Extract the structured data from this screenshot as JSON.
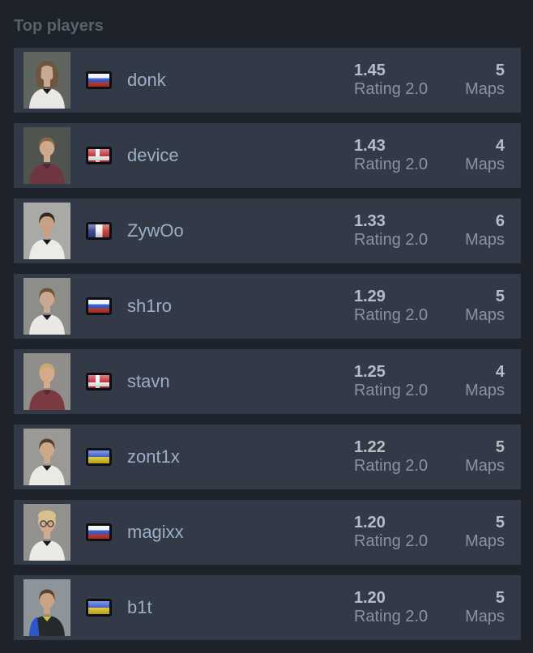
{
  "title": "Top players",
  "labels": {
    "rating": "Rating 2.0",
    "maps": "Maps"
  },
  "colors": {
    "page_bg": "#1d222b",
    "row_bg": "#313a46",
    "title": "#59616b",
    "player_name": "#9cafc7",
    "stat_value": "#b5bec7",
    "stat_label": "#8a939e",
    "flag_border": "#0e0f12"
  },
  "flag_palette": {
    "ru": [
      "#eef0f2",
      "#2b50c8",
      "#c5362a"
    ],
    "dk": [
      "#c32b35",
      "#f4f4f4"
    ],
    "fr": [
      "#31418e",
      "#f0f0f0",
      "#bc3c3c"
    ],
    "ua": [
      "#2f55cc",
      "#e3c82e"
    ]
  },
  "players": [
    {
      "name": "donk",
      "country": "Russia",
      "flag": "ru",
      "rating": "1.45",
      "maps": "5",
      "avatar": {
        "bg": "#60655f",
        "hair": "#6d5540",
        "skin": "#c9a98f",
        "shirt": "#e9e8e4",
        "accent": "#17181b",
        "style": "long"
      }
    },
    {
      "name": "device",
      "country": "Denmark",
      "flag": "dk",
      "rating": "1.43",
      "maps": "4",
      "avatar": {
        "bg": "#50544f",
        "hair": "#8a6a4a",
        "skin": "#cfa98c",
        "shirt": "#6f3540",
        "accent": "#4a262e",
        "style": "short"
      }
    },
    {
      "name": "ZywOo",
      "country": "France",
      "flag": "fr",
      "rating": "1.33",
      "maps": "6",
      "avatar": {
        "bg": "#a9a9a5",
        "hair": "#352a22",
        "skin": "#c7a184",
        "shirt": "#edebe6",
        "accent": "#17181b",
        "style": "short"
      }
    },
    {
      "name": "sh1ro",
      "country": "Russia",
      "flag": "ru",
      "rating": "1.29",
      "maps": "5",
      "avatar": {
        "bg": "#8d8d89",
        "hair": "#6d5138",
        "skin": "#c9a98f",
        "shirt": "#eae8e3",
        "accent": "#17181b",
        "style": "short"
      }
    },
    {
      "name": "stavn",
      "country": "Denmark",
      "flag": "dk",
      "rating": "1.25",
      "maps": "4",
      "avatar": {
        "bg": "#8f8e8a",
        "hair": "#c9a96b",
        "skin": "#d4ac8c",
        "shirt": "#7b3a42",
        "accent": "#5a272f",
        "style": "short"
      }
    },
    {
      "name": "zont1x",
      "country": "Ukraine",
      "flag": "ua",
      "rating": "1.22",
      "maps": "5",
      "avatar": {
        "bg": "#9a9995",
        "hair": "#54402e",
        "skin": "#cba989",
        "shirt": "#eceae6",
        "accent": "#17181b",
        "style": "short"
      }
    },
    {
      "name": "magixx",
      "country": "Russia",
      "flag": "ru",
      "rating": "1.20",
      "maps": "5",
      "avatar": {
        "bg": "#93928e",
        "hair": "#d8c08c",
        "skin": "#d2ab8c",
        "shirt": "#eceae6",
        "accent": "#17181b",
        "style": "curly",
        "glasses": true
      }
    },
    {
      "name": "b1t",
      "country": "Ukraine",
      "flag": "ua",
      "rating": "1.20",
      "maps": "5",
      "avatar": {
        "bg": "#8e959a",
        "hair": "#5c432f",
        "skin": "#c9a384",
        "shirt": "#26292e",
        "accent": "#d8c23a",
        "sleeve": "#2b57c8",
        "style": "short"
      }
    }
  ]
}
